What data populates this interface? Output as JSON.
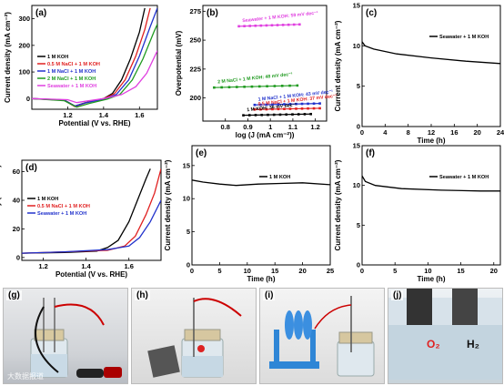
{
  "colors": {
    "black": "#000000",
    "red": "#e02020",
    "blue": "#2233cc",
    "green": "#1f9a1f",
    "magenta": "#e040e0",
    "axis": "#000000"
  },
  "chart_data": [
    {
      "id": "a",
      "panel_label": "(a)",
      "type": "line",
      "xlabel": "Potential (V vs. RHE)",
      "ylabel": "Current density (mA cm⁻²)",
      "xlim": [
        1.0,
        1.7
      ],
      "ylim": [
        -40,
        350
      ],
      "xticks": [
        1.2,
        1.4,
        1.6
      ],
      "yticks": [
        0,
        100,
        200,
        300
      ],
      "legend_position": "top-left",
      "series": [
        {
          "name": "1 M KOH",
          "color": "black",
          "points": [
            [
              1.0,
              0
            ],
            [
              1.18,
              -5
            ],
            [
              1.24,
              -28
            ],
            [
              1.3,
              -15
            ],
            [
              1.4,
              0
            ],
            [
              1.45,
              20
            ],
            [
              1.5,
              70
            ],
            [
              1.55,
              150
            ],
            [
              1.6,
              250
            ],
            [
              1.63,
              340
            ]
          ]
        },
        {
          "name": "0.5 M NaCl + 1 M KOH",
          "color": "red",
          "points": [
            [
              1.0,
              0
            ],
            [
              1.18,
              -6
            ],
            [
              1.24,
              -30
            ],
            [
              1.3,
              -16
            ],
            [
              1.4,
              0
            ],
            [
              1.46,
              18
            ],
            [
              1.52,
              70
            ],
            [
              1.58,
              160
            ],
            [
              1.63,
              260
            ],
            [
              1.66,
              340
            ]
          ]
        },
        {
          "name": "1 M NaCl + 1 M KOH",
          "color": "blue",
          "points": [
            [
              1.0,
              0
            ],
            [
              1.18,
              -6
            ],
            [
              1.24,
              -28
            ],
            [
              1.3,
              -16
            ],
            [
              1.4,
              -2
            ],
            [
              1.47,
              15
            ],
            [
              1.54,
              70
            ],
            [
              1.6,
              160
            ],
            [
              1.66,
              270
            ],
            [
              1.7,
              340
            ]
          ]
        },
        {
          "name": "2 M NaCl + 1 M KOH",
          "color": "green",
          "points": [
            [
              1.0,
              0
            ],
            [
              1.18,
              -8
            ],
            [
              1.25,
              -32
            ],
            [
              1.32,
              -18
            ],
            [
              1.42,
              -2
            ],
            [
              1.49,
              15
            ],
            [
              1.56,
              70
            ],
            [
              1.62,
              150
            ],
            [
              1.68,
              250
            ],
            [
              1.7,
              280
            ]
          ]
        },
        {
          "name": "Seawater + 1 M KOH",
          "color": "magenta",
          "points": [
            [
              1.0,
              0
            ],
            [
              1.2,
              -4
            ],
            [
              1.25,
              -15
            ],
            [
              1.3,
              -10
            ],
            [
              1.4,
              0
            ],
            [
              1.5,
              15
            ],
            [
              1.58,
              45
            ],
            [
              1.64,
              95
            ],
            [
              1.7,
              180
            ]
          ]
        }
      ]
    },
    {
      "id": "b",
      "panel_label": "(b)",
      "type": "scatter",
      "xlabel": "log (J (mA cm⁻²))",
      "ylabel": "Overpotential (mV)",
      "xlim": [
        0.7,
        1.25
      ],
      "ylim": [
        180,
        280
      ],
      "xticks": [
        0.8,
        0.9,
        1.0,
        1.1,
        1.2
      ],
      "yticks": [
        200,
        225,
        250,
        275
      ],
      "series": [
        {
          "name": "Seawater + 1 M KOH: 59 mV dec⁻¹",
          "color": "magenta",
          "x0": 0.86,
          "x1": 1.13,
          "y0": 262,
          "slope": 59
        },
        {
          "name": "2 M NaCl + 1 M KOH: 48 mV dec⁻¹",
          "color": "green",
          "x0": 0.75,
          "x1": 1.12,
          "y0": 209,
          "slope": 48
        },
        {
          "name": "1 M NaCl + 1 M KOH: 43 mV dec⁻¹",
          "color": "blue",
          "x0": 0.93,
          "x1": 1.22,
          "y0": 194,
          "slope": 43
        },
        {
          "name": "0.5 M NaCl + 1 M KOH: 37 mV dec⁻¹",
          "color": "red",
          "x0": 0.93,
          "x1": 1.22,
          "y0": 190,
          "slope": 37
        },
        {
          "name": "1 M KOH: 36 mV dec⁻¹",
          "color": "black",
          "x0": 0.88,
          "x1": 1.18,
          "y0": 185,
          "slope": 36
        }
      ]
    },
    {
      "id": "c",
      "panel_label": "(c)",
      "type": "line",
      "xlabel": "Time (h)",
      "ylabel": "Current density (mA cm⁻²)",
      "xlim": [
        0,
        24
      ],
      "ylim": [
        0,
        15
      ],
      "xticks": [
        0,
        4,
        8,
        12,
        16,
        20,
        24
      ],
      "yticks": [
        0,
        5,
        10,
        15
      ],
      "legend_position": "top-right",
      "series": [
        {
          "name": "Seawater + 1 M KOH",
          "color": "black",
          "points": [
            [
              0,
              10.5
            ],
            [
              0.5,
              10.0
            ],
            [
              2,
              9.6
            ],
            [
              6,
              9.0
            ],
            [
              12,
              8.5
            ],
            [
              18,
              8.1
            ],
            [
              24,
              7.8
            ]
          ]
        }
      ]
    },
    {
      "id": "d",
      "panel_label": "(d)",
      "type": "line",
      "xlabel": "Potential (V vs. RHE)",
      "ylabel": "Current density (mA cm⁻²)",
      "xlim": [
        1.1,
        1.75
      ],
      "ylim": [
        -2,
        68
      ],
      "xticks": [
        1.2,
        1.4,
        1.6
      ],
      "yticks": [
        0,
        20,
        40,
        60
      ],
      "legend_position": "center-left",
      "series": [
        {
          "name": "1 M KOH",
          "color": "black",
          "points": [
            [
              1.1,
              3
            ],
            [
              1.3,
              3.5
            ],
            [
              1.45,
              4.5
            ],
            [
              1.5,
              7
            ],
            [
              1.55,
              12
            ],
            [
              1.6,
              25
            ],
            [
              1.64,
              40
            ],
            [
              1.68,
              55
            ],
            [
              1.7,
              62
            ]
          ]
        },
        {
          "name": "0.5 M NaCl + 1 M KOH",
          "color": "red",
          "points": [
            [
              1.1,
              3
            ],
            [
              1.3,
              4
            ],
            [
              1.5,
              5
            ],
            [
              1.58,
              8
            ],
            [
              1.63,
              15
            ],
            [
              1.68,
              30
            ],
            [
              1.72,
              45
            ],
            [
              1.75,
              62
            ]
          ]
        },
        {
          "name": "Seawater + 1 M KOH",
          "color": "blue",
          "points": [
            [
              1.1,
              3
            ],
            [
              1.3,
              4
            ],
            [
              1.5,
              5.5
            ],
            [
              1.6,
              8
            ],
            [
              1.65,
              14
            ],
            [
              1.7,
              25
            ],
            [
              1.75,
              40
            ]
          ]
        }
      ]
    },
    {
      "id": "e",
      "panel_label": "(e)",
      "type": "line",
      "xlabel": "Time (h)",
      "ylabel": "Current density (mA cm⁻²)",
      "xlim": [
        0,
        25
      ],
      "ylim": [
        0,
        18
      ],
      "xticks": [
        0,
        5,
        10,
        15,
        20,
        25
      ],
      "yticks": [
        0,
        5,
        10,
        15
      ],
      "legend_position": "top-right",
      "series": [
        {
          "name": "1 M KOH",
          "color": "black",
          "points": [
            [
              0,
              12.8
            ],
            [
              2,
              12.5
            ],
            [
              5,
              12.2
            ],
            [
              8,
              12.0
            ],
            [
              12,
              12.2
            ],
            [
              16,
              12.3
            ],
            [
              20,
              12.4
            ],
            [
              25,
              12.1
            ]
          ]
        }
      ]
    },
    {
      "id": "f",
      "panel_label": "(f)",
      "type": "line",
      "xlabel": "Time (h)",
      "ylabel": "Current density (mA cm⁻²)",
      "xlim": [
        0,
        21
      ],
      "ylim": [
        0,
        15
      ],
      "xticks": [
        0,
        5,
        10,
        15,
        20
      ],
      "yticks": [
        0,
        5,
        10,
        15
      ],
      "legend_position": "top-right",
      "series": [
        {
          "name": "Seawater + 1 M KOH",
          "color": "black",
          "points": [
            [
              0,
              11.2
            ],
            [
              0.5,
              10.5
            ],
            [
              2,
              10.0
            ],
            [
              6,
              9.6
            ],
            [
              12,
              9.4
            ],
            [
              18,
              9.3
            ],
            [
              21,
              9.3
            ]
          ]
        }
      ]
    }
  ],
  "photos": [
    {
      "id": "g",
      "label": "(g)",
      "watermark": "大数据报道"
    },
    {
      "id": "h",
      "label": "(h)",
      "watermark": ""
    },
    {
      "id": "i",
      "label": "(i)",
      "watermark": ""
    },
    {
      "id": "j",
      "label": "(j)",
      "watermark": "",
      "text_o2": "O₂",
      "text_h2": "H₂"
    }
  ]
}
